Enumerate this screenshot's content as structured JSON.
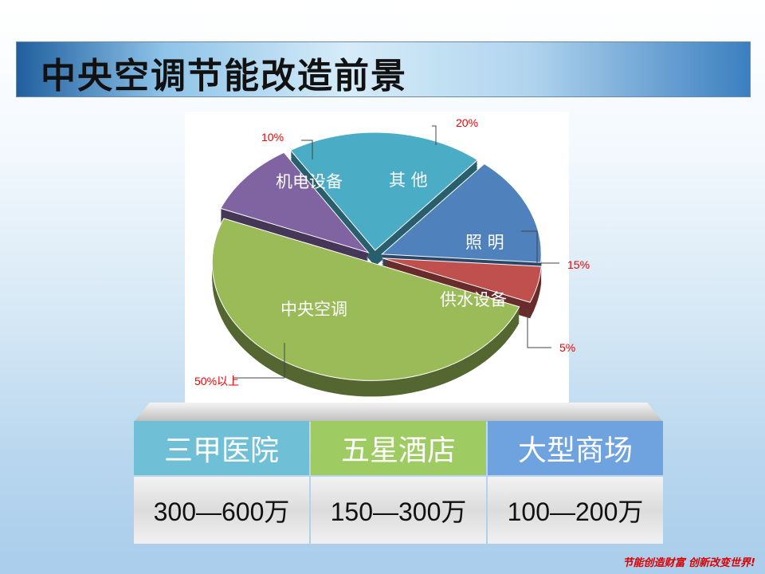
{
  "title": "中央空调节能改造前景",
  "chart_data": {
    "type": "pie",
    "style": "3d-exploded",
    "slices": [
      {
        "label": "其 他",
        "value": 20,
        "value_label": "20%",
        "color": "#4bacc6"
      },
      {
        "label": "照 明",
        "value": 15,
        "value_label": "15%",
        "color": "#4f81bd"
      },
      {
        "label": "供水设备",
        "value": 5,
        "value_label": "5%",
        "color": "#c0504d"
      },
      {
        "label": "中央空调",
        "value": 50,
        "value_label": "50%以上",
        "color": "#9bbb59"
      },
      {
        "label": "机电设备",
        "value": 10,
        "value_label": "10%",
        "color": "#8064a2"
      }
    ]
  },
  "table": {
    "columns": [
      {
        "header": "三甲医院",
        "value": "300—600万",
        "color": "#6fc0d6"
      },
      {
        "header": "五星酒店",
        "value": "150—300万",
        "color": "#9fcc62"
      },
      {
        "header": "大型商场",
        "value": "100—200万",
        "color": "#6ea3e0"
      }
    ]
  },
  "slogan": "节能创造财富 创新改变世界!"
}
